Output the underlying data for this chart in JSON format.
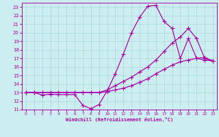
{
  "xlabel": "Windchill (Refroidissement éolien,°C)",
  "xlim": [
    -0.5,
    23.5
  ],
  "ylim": [
    11,
    23.5
  ],
  "xticks": [
    0,
    1,
    2,
    3,
    4,
    5,
    6,
    7,
    8,
    9,
    10,
    11,
    12,
    13,
    14,
    15,
    16,
    17,
    18,
    19,
    20,
    21,
    22,
    23
  ],
  "yticks": [
    11,
    12,
    13,
    14,
    15,
    16,
    17,
    18,
    19,
    20,
    21,
    22,
    23
  ],
  "bg_color": "#cceef0",
  "grid_color": "#aad8dc",
  "line_color": "#aa00aa",
  "line1_x": [
    0,
    1,
    2,
    3,
    4,
    5,
    6,
    7,
    8,
    9,
    10,
    11,
    12,
    13,
    14,
    15,
    16,
    17,
    18,
    19,
    20,
    21,
    22,
    23
  ],
  "line1_y": [
    13,
    13,
    12.7,
    12.8,
    12.75,
    12.75,
    12.75,
    11.5,
    11.1,
    11.6,
    13.2,
    15.2,
    17.5,
    20.0,
    21.8,
    23.1,
    23.2,
    21.3,
    20.5,
    17.0,
    19.3,
    17.0,
    16.8,
    16.7
  ],
  "line2_x": [
    0,
    1,
    2,
    3,
    4,
    5,
    6,
    7,
    8,
    9,
    10,
    11,
    12,
    13,
    14,
    15,
    16,
    17,
    18,
    19,
    20,
    21,
    22,
    23
  ],
  "line2_y": [
    13,
    13,
    13,
    13,
    13,
    13,
    13,
    13,
    13,
    13,
    13.1,
    13.3,
    13.5,
    13.8,
    14.2,
    14.6,
    15.2,
    15.7,
    16.2,
    16.6,
    16.8,
    17.0,
    17.1,
    16.7
  ],
  "line3_x": [
    0,
    1,
    2,
    3,
    4,
    5,
    6,
    7,
    8,
    9,
    10,
    11,
    12,
    13,
    14,
    15,
    16,
    17,
    18,
    19,
    20,
    21,
    22,
    23
  ],
  "line3_y": [
    13,
    13,
    13,
    13,
    13,
    13,
    13,
    13,
    13,
    13,
    13.3,
    13.8,
    14.3,
    14.8,
    15.4,
    16.0,
    16.8,
    17.8,
    18.8,
    19.5,
    20.5,
    19.3,
    17.0,
    16.7
  ]
}
